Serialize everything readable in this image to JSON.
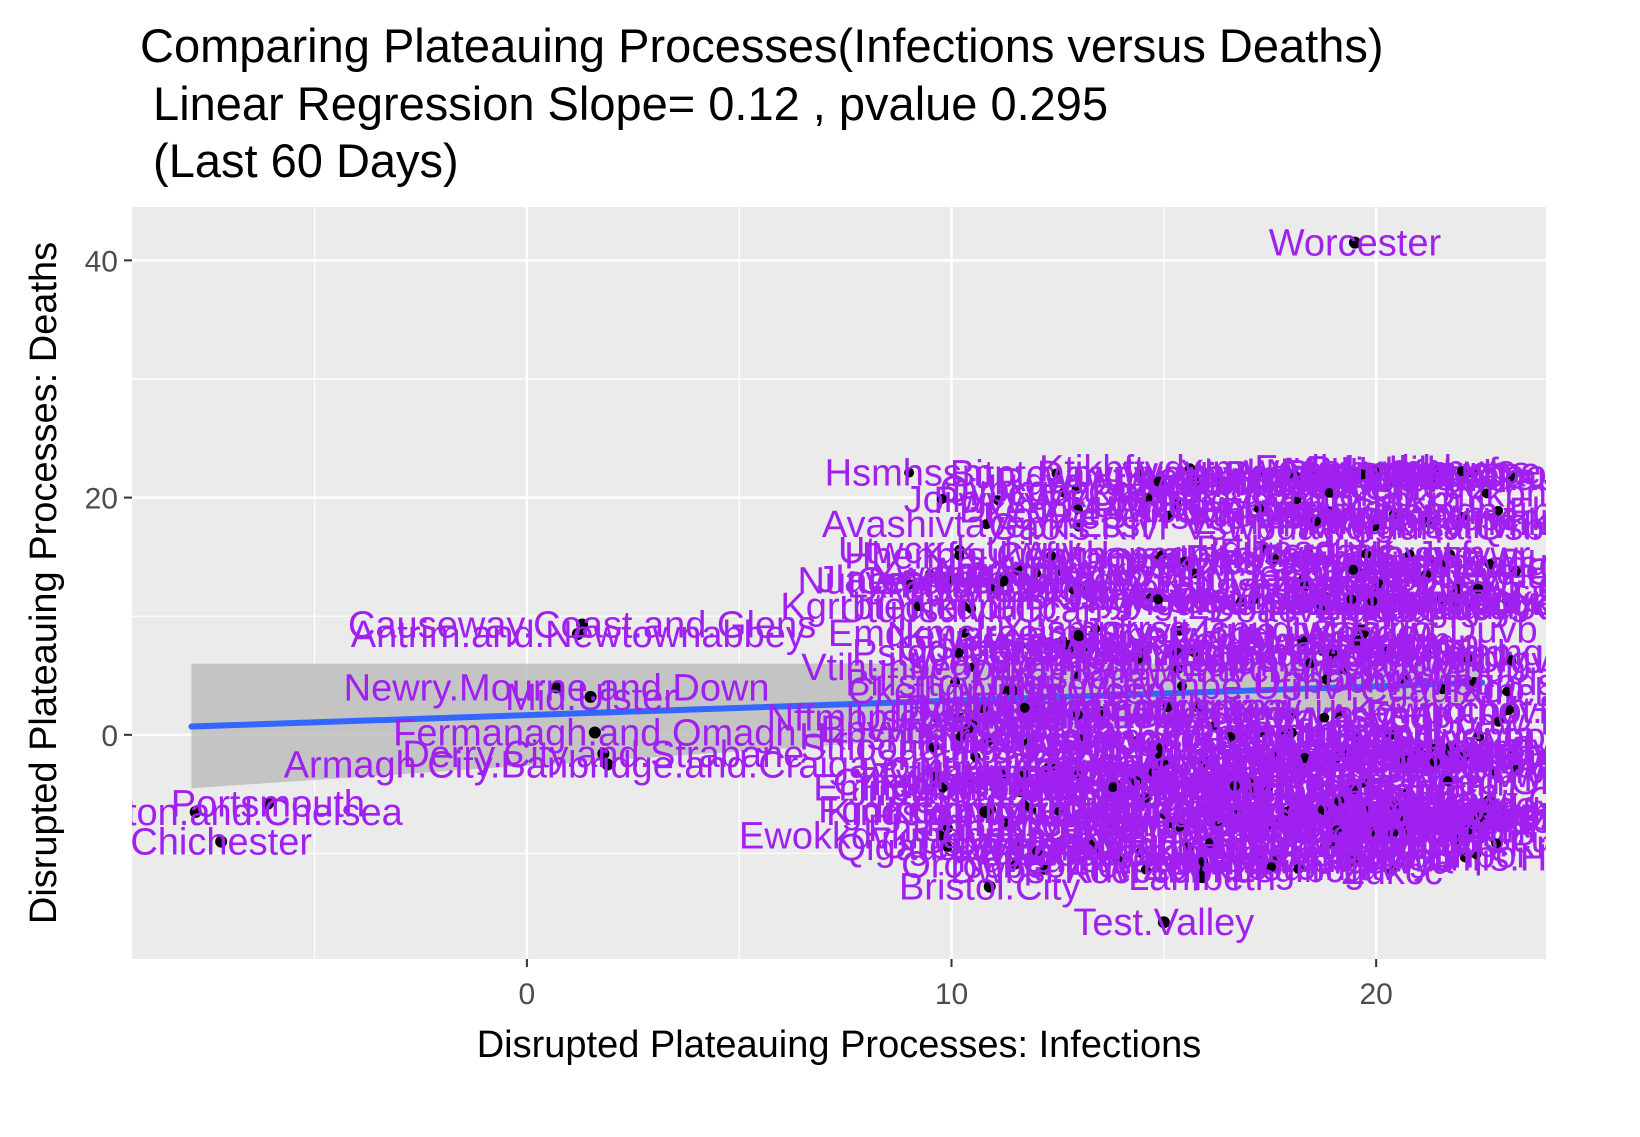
{
  "chart_data": {
    "type": "scatter",
    "title_lines": [
      "Comparing Plateauing Processes(Infections versus Deaths)",
      " Linear Regression Slope= 0.12 , pvalue 0.295",
      " (Last 60 Days)"
    ],
    "xlabel": "Disrupted Plateauing Processes: Infections",
    "ylabel": "Disrupted Plateauing Processes: Deaths",
    "xlim": [
      -9.3,
      24.0
    ],
    "ylim": [
      -18.9,
      44.5
    ],
    "x_ticks": [
      0,
      10,
      20
    ],
    "y_ticks": [
      0,
      20,
      40
    ],
    "grid": true,
    "point_color": "#000000",
    "label_color": "#a020f0",
    "line_color": "#3366ff",
    "band_color": "#bdbdbd",
    "panel_color": "#ebebeb",
    "regression": {
      "slope": 0.12,
      "x_start": -7.9,
      "x_end": 22.5,
      "y_start": 0.7,
      "y_end": 4.4
    },
    "confidence_band": {
      "low_start": -4.5,
      "high_start": 6.0,
      "low_end": 2.8,
      "high_end": 6.0
    },
    "labeled_points": [
      {
        "label": "Worcester",
        "x": 19.5,
        "y": 41.5
      },
      {
        "label": "Causeway.Coast.and.Glens",
        "x": 1.3,
        "y": 9.3
      },
      {
        "label": "Antrim.and.Newtownabbey",
        "x": 1.2,
        "y": 8.5
      },
      {
        "label": "Newry.Mourne.and.Down",
        "x": 0.7,
        "y": 4.0
      },
      {
        "label": "Mid.Ulster",
        "x": 1.5,
        "y": 3.2
      },
      {
        "label": "Fermanagh.and.Omagh",
        "x": 1.6,
        "y": 0.2
      },
      {
        "label": "Derry.City.and.Strabane",
        "x": 1.8,
        "y": -1.6
      },
      {
        "label": "Armagh.City.Banbridge.and.Craigavon",
        "x": 1.9,
        "y": -2.5
      },
      {
        "label": "Portsmouth",
        "x": -6.1,
        "y": -5.8
      },
      {
        "label": "Kensington.and.Chelsea",
        "x": -7.8,
        "y": -6.5
      },
      {
        "label": "Chichester",
        "x": -7.2,
        "y": -9.0
      },
      {
        "label": "Newark.and.Sherwood",
        "x": 13.0,
        "y": 8.4
      },
      {
        "label": "Nuneaton.and.Bedworth",
        "x": 11.2,
        "y": 13.0
      },
      {
        "label": "Kingston.upon.Hull",
        "x": 10.8,
        "y": -6.5
      },
      {
        "label": "Bristol.City",
        "x": 10.9,
        "y": -12.8
      },
      {
        "label": "Lambeth",
        "x": 15.9,
        "y": -12.0
      },
      {
        "label": "Test.Valley",
        "x": 15.0,
        "y": -15.8
      }
    ]
  }
}
